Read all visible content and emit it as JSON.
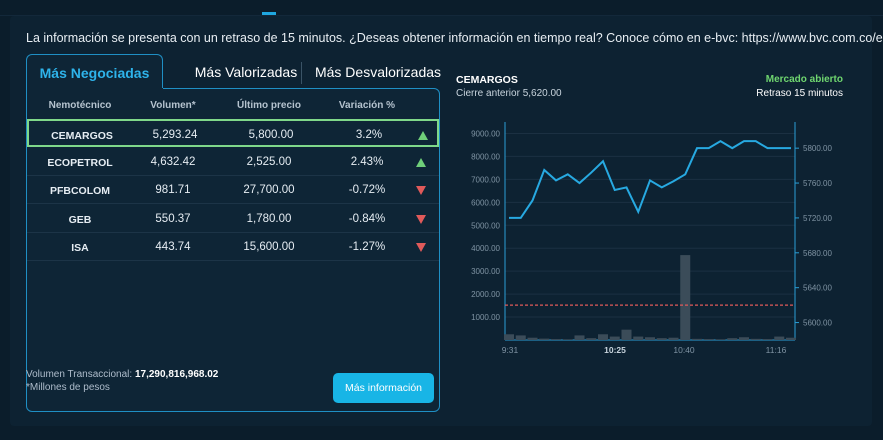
{
  "notice": "La información se presenta con un retraso de 15 minutos. ¿Deseas obtener información en tiempo real? Conoce cómo en e-bvc: https://www.bvc.com.co/e-bvc",
  "tabs": [
    {
      "label": "Más Negociadas",
      "active": true
    },
    {
      "label": "Más Valorizadas",
      "active": false
    },
    {
      "label": "Más Desvalorizadas",
      "active": false
    }
  ],
  "table": {
    "headers": [
      "Nemotécnico",
      "Volumen*",
      "Último precio",
      "Variación %"
    ],
    "rows": [
      {
        "symbol": "CEMARGOS",
        "volume": "5,293.24",
        "price": "5,800.00",
        "change": "3.2%",
        "direction": "up",
        "selected": true
      },
      {
        "symbol": "ECOPETROL",
        "volume": "4,632.42",
        "price": "2,525.00",
        "change": "2.43%",
        "direction": "up",
        "selected": false
      },
      {
        "symbol": "PFBCOLOM",
        "volume": "981.71",
        "price": "27,700.00",
        "change": "-0.72%",
        "direction": "down",
        "selected": false
      },
      {
        "symbol": "GEB",
        "volume": "550.37",
        "price": "1,780.00",
        "change": "-0.84%",
        "direction": "down",
        "selected": false
      },
      {
        "symbol": "ISA",
        "volume": "443.74",
        "price": "15,600.00",
        "change": "-1.27%",
        "direction": "down",
        "selected": false
      }
    ]
  },
  "footer": {
    "volume_label": "Volumen Transaccional:",
    "volume_value": "17,290,816,968.02",
    "note": "*Millones de pesos",
    "button": "Más información"
  },
  "chart_header": {
    "symbol": "CEMARGOS",
    "previous_close": "Cierre anterior 5,620.00",
    "market_status": "Mercado abierto",
    "delay": "Retraso 15 minutos"
  },
  "colors": {
    "accent": "#1fa7e0",
    "up": "#6fcf7a",
    "down": "#e05a5a",
    "market_open": "#6fd66f",
    "line": "#27a9e1",
    "reference": "#e05a5a"
  },
  "chart_data": {
    "type": "line",
    "x_ticks": [
      {
        "label": "9:31",
        "bold": false
      },
      {
        "label": "10:25",
        "bold": true
      },
      {
        "label": "10:40",
        "bold": false
      },
      {
        "label": "11:16",
        "bold": false
      }
    ],
    "price_axis": {
      "ticks": [
        "5800.00",
        "5760.00",
        "5720.00",
        "5680.00",
        "5640.00",
        "5600.00"
      ],
      "ylim": [
        5580,
        5830
      ]
    },
    "volume_axis": {
      "ticks": [
        "9000.00",
        "8000.00",
        "7000.00",
        "6000.00",
        "5000.00",
        "4000.00",
        "3000.00",
        "2000.00",
        "1000.00"
      ],
      "ylim": [
        0,
        9500
      ]
    },
    "reference_line": 5620,
    "price_series": [
      5720,
      5720,
      5740,
      5775,
      5763,
      5770,
      5760,
      5772,
      5785,
      5752,
      5755,
      5727,
      5763,
      5755,
      5762,
      5770,
      5800,
      5800,
      5808,
      5800,
      5808,
      5808,
      5800,
      5800,
      5800
    ],
    "volume_series": [
      250,
      200,
      100,
      60,
      40,
      30,
      200,
      80,
      250,
      150,
      450,
      150,
      120,
      80,
      100,
      3700,
      50,
      40,
      30,
      80,
      120,
      50,
      40,
      150,
      100
    ],
    "grid": true
  }
}
